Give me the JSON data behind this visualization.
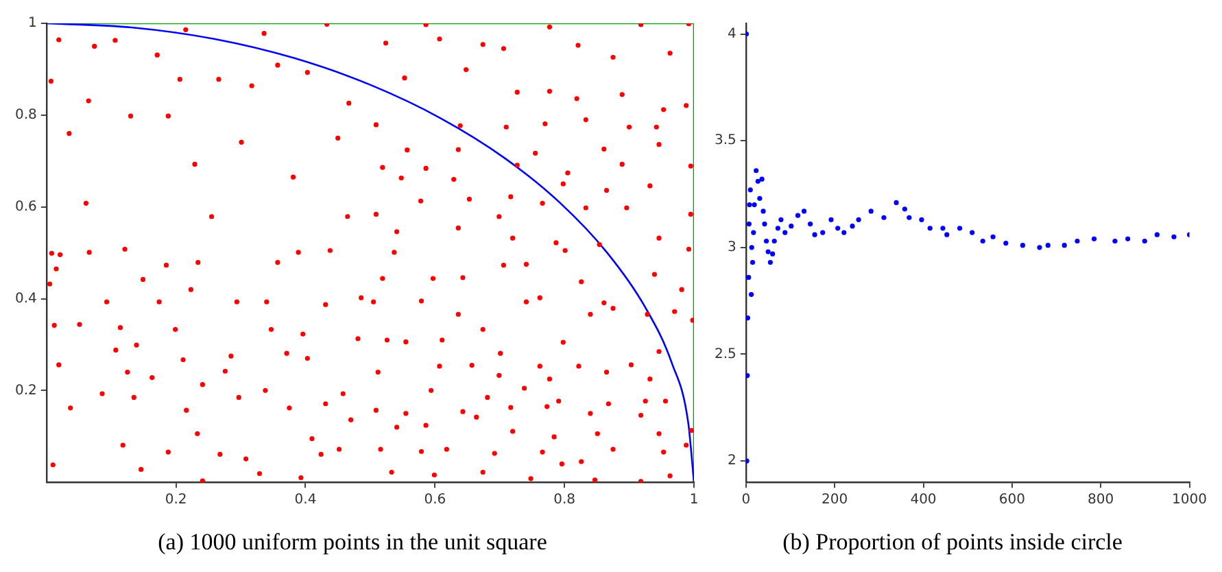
{
  "chart_data": [
    {
      "type": "scatter",
      "title": "(a) 1000 uniform points in the unit square",
      "xlim": [
        0,
        1
      ],
      "ylim": [
        0,
        1
      ],
      "xticks": [
        0.2,
        0.4,
        0.6,
        0.8,
        1
      ],
      "yticks": [
        0.2,
        0.4,
        0.6,
        0.8,
        1
      ],
      "grid": false,
      "legend": false,
      "marker": "circle",
      "series": [
        {
          "color": "#ff0000",
          "x": [
            0.007,
            0.019,
            0.035,
            0.065,
            0.074,
            0.061,
            0.106,
            0.13,
            0.171,
            0.188,
            0.215,
            0.206,
            0.229,
            0.266,
            0.301,
            0.317,
            0.336,
            0.357,
            0.381,
            0.403,
            0.433,
            0.45,
            0.467,
            0.465,
            0.008,
            0.121,
            0.255,
            0.586,
            0.524,
            0.607,
            0.674,
            0.706,
            0.777,
            0.821,
            0.918,
            0.963,
            0.992,
            0.875,
            0.553,
            0.648,
            0.727,
            0.777,
            0.819,
            0.889,
            0.953,
            0.988,
            0.509,
            0.639,
            0.71,
            0.77,
            0.833,
            0.9,
            0.942,
            0.557,
            0.636,
            0.755,
            0.861,
            0.946,
            0.519,
            0.586,
            0.727,
            0.805,
            0.889,
            0.995,
            0.548,
            0.629,
            0.717,
            0.798,
            0.865,
            0.932,
            0.509,
            0.578,
            0.653,
            0.699,
            0.766,
            0.833,
            0.896,
            0.995,
            0.541,
            0.636,
            0.72,
            0.787,
            0.854,
            0.946,
            0.992,
            0.005,
            0.015,
            0.021,
            0.012,
            0.037,
            0.019,
            0.01,
            0.051,
            0.066,
            0.093,
            0.107,
            0.086,
            0.114,
            0.125,
            0.118,
            0.149,
            0.139,
            0.135,
            0.146,
            0.163,
            0.174,
            0.188,
            0.185,
            0.199,
            0.211,
            0.216,
            0.223,
            0.234,
            0.233,
            0.241,
            0.268,
            0.276,
            0.285,
            0.294,
            0.297,
            0.308,
            0.329,
            0.338,
            0.34,
            0.347,
            0.357,
            0.371,
            0.375,
            0.389,
            0.396,
            0.403,
            0.41,
            0.424,
            0.431,
            0.438,
            0.452,
            0.458,
            0.47,
            0.481,
            0.486,
            0.431,
            0.393,
            0.241,
            0.537,
            0.519,
            0.597,
            0.643,
            0.706,
            0.741,
            0.801,
            0.826,
            0.861,
            0.939,
            0.981,
            0.998,
            0.505,
            0.579,
            0.636,
            0.674,
            0.741,
            0.762,
            0.798,
            0.84,
            0.875,
            0.928,
            0.97,
            0.526,
            0.555,
            0.611,
            0.701,
            0.762,
            0.822,
            0.903,
            0.946,
            0.512,
            0.607,
            0.657,
            0.699,
            0.777,
            0.865,
            0.932,
            0.594,
            0.681,
            0.738,
            0.791,
            0.868,
            0.925,
            0.509,
            0.555,
            0.643,
            0.717,
            0.773,
            0.84,
            0.918,
            0.956,
            0.541,
            0.586,
            0.664,
            0.72,
            0.784,
            0.851,
            0.946,
            0.996,
            0.516,
            0.579,
            0.618,
            0.692,
            0.766,
            0.826,
            0.875,
            0.953,
            0.988,
            0.533,
            0.599,
            0.674,
            0.748,
            0.796,
            0.847,
            0.918,
            0.963
          ],
          "values": [
            0.874,
            0.964,
            0.76,
            0.831,
            0.95,
            0.608,
            0.963,
            0.798,
            0.931,
            0.798,
            0.986,
            0.878,
            0.693,
            0.878,
            0.741,
            0.864,
            0.978,
            0.909,
            0.665,
            0.893,
            0.998,
            0.75,
            0.826,
            0.579,
            0.499,
            0.508,
            0.579,
            0.997,
            0.957,
            0.966,
            0.954,
            0.945,
            0.992,
            0.952,
            0.997,
            0.935,
            0.999,
            0.926,
            0.881,
            0.899,
            0.85,
            0.852,
            0.836,
            0.845,
            0.812,
            0.821,
            0.779,
            0.777,
            0.774,
            0.781,
            0.79,
            0.774,
            0.774,
            0.724,
            0.725,
            0.717,
            0.726,
            0.736,
            0.686,
            0.684,
            0.691,
            0.674,
            0.693,
            0.689,
            0.663,
            0.66,
            0.622,
            0.65,
            0.636,
            0.646,
            0.584,
            0.613,
            0.617,
            0.579,
            0.608,
            0.598,
            0.598,
            0.584,
            0.546,
            0.554,
            0.532,
            0.522,
            0.518,
            0.532,
            0.508,
            0.432,
            0.465,
            0.496,
            0.342,
            0.162,
            0.256,
            0.038,
            0.344,
            0.501,
            0.393,
            0.288,
            0.193,
            0.337,
            0.24,
            0.081,
            0.442,
            0.299,
            0.185,
            0.028,
            0.228,
            0.393,
            0.066,
            0.473,
            0.333,
            0.267,
            0.157,
            0.42,
            0.479,
            0.106,
            0.213,
            0.061,
            0.242,
            0.275,
            0.393,
            0.185,
            0.051,
            0.019,
            0.2,
            0.393,
            0.333,
            0.479,
            0.281,
            0.162,
            0.501,
            0.323,
            0.27,
            0.095,
            0.061,
            0.171,
            0.505,
            0.072,
            0.193,
            0.136,
            0.313,
            0.402,
            0.387,
            0.01,
            0.003,
            0.501,
            0.444,
            0.444,
            0.446,
            0.473,
            0.475,
            0.505,
            0.437,
            0.391,
            0.453,
            0.42,
            0.353,
            0.393,
            0.395,
            0.366,
            0.333,
            0.393,
            0.402,
            0.305,
            0.366,
            0.379,
            0.366,
            0.372,
            0.31,
            0.306,
            0.31,
            0.281,
            0.253,
            0.253,
            0.256,
            0.285,
            0.24,
            0.253,
            0.255,
            0.233,
            0.225,
            0.24,
            0.225,
            0.2,
            0.185,
            0.205,
            0.177,
            0.171,
            0.177,
            0.157,
            0.15,
            0.154,
            0.163,
            0.165,
            0.15,
            0.146,
            0.177,
            0.12,
            0.124,
            0.142,
            0.111,
            0.099,
            0.106,
            0.106,
            0.113,
            0.072,
            0.067,
            0.072,
            0.063,
            0.066,
            0.045,
            0.072,
            0.066,
            0.081,
            0.022,
            0.016,
            0.022,
            0.008,
            0.04,
            0.005,
            0.002,
            0.014
          ]
        },
        {
          "type": "line",
          "marker": "none",
          "color": "#0000ff",
          "x": [
            0,
            0.131,
            0.259,
            0.383,
            0.5,
            0.609,
            0.707,
            0.793,
            0.866,
            0.924,
            0.966,
            0.991,
            1
          ],
          "values": [
            1,
            0.991,
            0.966,
            0.924,
            0.866,
            0.793,
            0.707,
            0.609,
            0.5,
            0.383,
            0.259,
            0.131,
            0
          ]
        },
        {
          "type": "line",
          "marker": "none",
          "color": "#00a000",
          "x": [
            0,
            1,
            1
          ],
          "values": [
            1,
            1,
            0
          ]
        }
      ]
    },
    {
      "type": "scatter",
      "title": "(b) Proportion of points inside circle",
      "xlim": [
        0,
        1000
      ],
      "ylim": [
        1.9,
        4.05
      ],
      "xticks": [
        0,
        200,
        400,
        600,
        800,
        1000
      ],
      "yticks": [
        2,
        2.5,
        3,
        3.5,
        4
      ],
      "grid": false,
      "legend": false,
      "marker": "circle",
      "series": [
        {
          "color": "#0000ff",
          "x": [
            1,
            2,
            3,
            4,
            6,
            7,
            8,
            10,
            12,
            13,
            15,
            17,
            19,
            23,
            27,
            31,
            36,
            39,
            42,
            46,
            50,
            55,
            60,
            64,
            72,
            79,
            88,
            102,
            117,
            131,
            145,
            155,
            173,
            192,
            207,
            221,
            240,
            254,
            282,
            311,
            339,
            358,
            368,
            396,
            415,
            444,
            453,
            482,
            510,
            534,
            557,
            586,
            624,
            662,
            681,
            718,
            747,
            785,
            832,
            861,
            899,
            927,
            965,
            1000
          ],
          "values": [
            4,
            2,
            2.4,
            2.67,
            2.86,
            3.11,
            3.2,
            3.27,
            2.78,
            3.0,
            2.93,
            3.07,
            3.2,
            3.36,
            3.31,
            3.23,
            3.32,
            3.17,
            3.11,
            3.03,
            2.98,
            2.93,
            2.97,
            3.03,
            3.09,
            3.13,
            3.07,
            3.1,
            3.15,
            3.17,
            3.11,
            3.06,
            3.07,
            3.13,
            3.09,
            3.07,
            3.1,
            3.13,
            3.17,
            3.14,
            3.21,
            3.18,
            3.14,
            3.13,
            3.09,
            3.09,
            3.06,
            3.09,
            3.07,
            3.03,
            3.05,
            3.02,
            3.01,
            3.0,
            3.01,
            3.01,
            3.03,
            3.04,
            3.03,
            3.04,
            3.03,
            3.06,
            3.05,
            3.06
          ]
        }
      ]
    }
  ]
}
